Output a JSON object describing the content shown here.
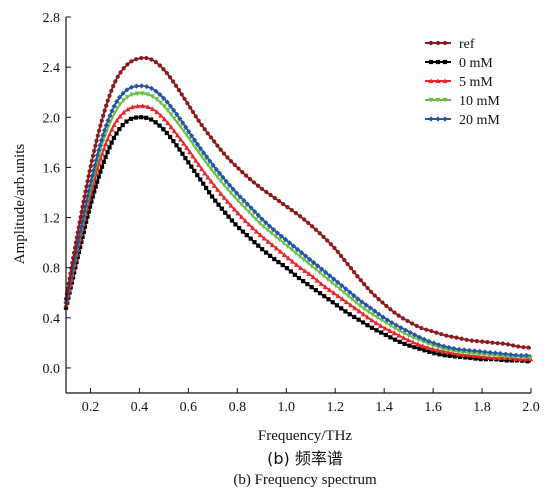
{
  "chart_data": {
    "type": "line",
    "xlabel": "Frequency/THz",
    "ylabel": "Amplitude/arb.units",
    "xlim": [
      0.1,
      2.0
    ],
    "ylim": [
      -0.2,
      2.8
    ],
    "xticks": [
      0.2,
      0.4,
      0.6,
      0.8,
      1.0,
      1.2,
      1.4,
      1.6,
      1.8,
      2.0
    ],
    "xtick_labels": [
      "0.2",
      "0.4",
      "0.6",
      "0.8",
      "1.0",
      "1.2",
      "1.4",
      "1.6",
      "1.8",
      "2.0"
    ],
    "yticks": [
      0.0,
      0.4,
      0.8,
      1.2,
      1.6,
      2.0,
      2.4,
      2.8
    ],
    "ytick_labels": [
      "0.0",
      "0.4",
      "0.8",
      "1.2",
      "1.6",
      "2.0",
      "2.4",
      "2.8"
    ],
    "grid": false,
    "legend_position": "top-right",
    "x": [
      0.1,
      0.15,
      0.2,
      0.25,
      0.3,
      0.35,
      0.4,
      0.45,
      0.5,
      0.55,
      0.6,
      0.65,
      0.7,
      0.75,
      0.8,
      0.85,
      0.9,
      0.95,
      1.0,
      1.05,
      1.1,
      1.15,
      1.2,
      1.25,
      1.3,
      1.35,
      1.4,
      1.45,
      1.5,
      1.55,
      1.6,
      1.65,
      1.7,
      1.75,
      1.8,
      1.85,
      1.9,
      1.95,
      2.0
    ],
    "series": [
      {
        "name": "ref",
        "color": "#8b1a1a",
        "marker": "circle",
        "values": [
          0.55,
          1.1,
          1.6,
          2.0,
          2.28,
          2.42,
          2.47,
          2.46,
          2.38,
          2.25,
          2.1,
          1.95,
          1.82,
          1.7,
          1.6,
          1.51,
          1.43,
          1.36,
          1.29,
          1.22,
          1.14,
          1.05,
          0.95,
          0.83,
          0.71,
          0.6,
          0.51,
          0.43,
          0.37,
          0.32,
          0.29,
          0.26,
          0.24,
          0.22,
          0.21,
          0.2,
          0.19,
          0.17,
          0.16
        ]
      },
      {
        "name": "0 mM",
        "color": "#000000",
        "marker": "square",
        "values": [
          0.48,
          0.9,
          1.3,
          1.62,
          1.85,
          1.97,
          2.0,
          1.98,
          1.9,
          1.78,
          1.64,
          1.5,
          1.36,
          1.24,
          1.13,
          1.04,
          0.95,
          0.87,
          0.8,
          0.72,
          0.65,
          0.58,
          0.51,
          0.44,
          0.38,
          0.32,
          0.27,
          0.22,
          0.18,
          0.15,
          0.12,
          0.1,
          0.09,
          0.08,
          0.07,
          0.07,
          0.06,
          0.06,
          0.05
        ]
      },
      {
        "name": "5 mM",
        "color": "#e8262b",
        "marker": "triangle",
        "values": [
          0.5,
          0.95,
          1.38,
          1.72,
          1.95,
          2.06,
          2.09,
          2.07,
          1.99,
          1.87,
          1.74,
          1.6,
          1.47,
          1.35,
          1.24,
          1.14,
          1.05,
          0.97,
          0.89,
          0.81,
          0.74,
          0.66,
          0.59,
          0.52,
          0.45,
          0.38,
          0.32,
          0.27,
          0.22,
          0.18,
          0.15,
          0.13,
          0.11,
          0.1,
          0.09,
          0.08,
          0.08,
          0.07,
          0.07
        ]
      },
      {
        "name": "10 mM",
        "color": "#6cc04a",
        "marker": "triangle-down",
        "values": [
          0.51,
          0.98,
          1.43,
          1.8,
          2.04,
          2.16,
          2.19,
          2.17,
          2.09,
          1.97,
          1.84,
          1.7,
          1.57,
          1.45,
          1.34,
          1.24,
          1.14,
          1.06,
          0.98,
          0.9,
          0.82,
          0.74,
          0.66,
          0.58,
          0.5,
          0.43,
          0.37,
          0.31,
          0.26,
          0.22,
          0.18,
          0.15,
          0.13,
          0.12,
          0.11,
          0.1,
          0.09,
          0.09,
          0.08
        ]
      },
      {
        "name": "20 mM",
        "color": "#2456a4",
        "marker": "diamond",
        "values": [
          0.52,
          1.0,
          1.47,
          1.85,
          2.1,
          2.22,
          2.25,
          2.23,
          2.15,
          2.03,
          1.89,
          1.75,
          1.62,
          1.5,
          1.39,
          1.29,
          1.19,
          1.1,
          1.02,
          0.94,
          0.86,
          0.78,
          0.7,
          0.62,
          0.54,
          0.47,
          0.4,
          0.34,
          0.29,
          0.24,
          0.2,
          0.17,
          0.15,
          0.14,
          0.13,
          0.12,
          0.11,
          0.1,
          0.1
        ]
      }
    ]
  },
  "caption": {
    "zh": "(b) 频率谱",
    "en": "(b) Frequency spectrum"
  }
}
